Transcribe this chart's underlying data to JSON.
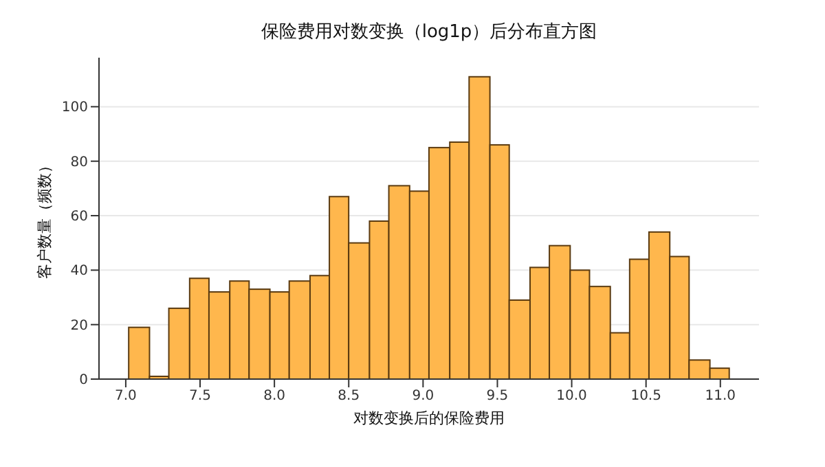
{
  "chart_data": {
    "type": "histogram",
    "title": "保险费用对数变换（log1p）后分布直方图",
    "xlabel": "对数变换后的保险费用",
    "ylabel": "客户数量（频数）",
    "bins": [
      7.02,
      7.16,
      7.29,
      7.43,
      7.56,
      7.7,
      7.83,
      7.97,
      8.1,
      8.24,
      8.37,
      8.5,
      8.64,
      8.77,
      8.91,
      9.04,
      9.18,
      9.31,
      9.45,
      9.58,
      9.72,
      9.85,
      9.99,
      10.12,
      10.26,
      10.39,
      10.52,
      10.66,
      10.79,
      10.93,
      11.06
    ],
    "values": [
      19,
      1,
      26,
      37,
      32,
      36,
      33,
      32,
      36,
      38,
      67,
      50,
      58,
      71,
      69,
      85,
      87,
      111,
      86,
      29,
      41,
      49,
      40,
      34,
      17,
      44,
      54,
      45,
      7,
      4
    ],
    "color": "#ffb74d",
    "xlim": [
      6.82,
      11.26
    ],
    "xticks": [
      {
        "value": 7,
        "label": "7.0"
      },
      {
        "value": 7.5,
        "label": "7.5"
      },
      {
        "value": 8,
        "label": "8.0"
      },
      {
        "value": 8.5,
        "label": "8.5"
      },
      {
        "value": 9,
        "label": "9.0"
      },
      {
        "value": 9.5,
        "label": "9.5"
      },
      {
        "value": 10,
        "label": "10.0"
      },
      {
        "value": 10.5,
        "label": "10.5"
      },
      {
        "value": 11,
        "label": "11.0"
      }
    ],
    "ylim": [
      0,
      118
    ],
    "yticks": [
      0,
      20,
      40,
      60,
      80,
      100
    ],
    "grid": "y"
  }
}
